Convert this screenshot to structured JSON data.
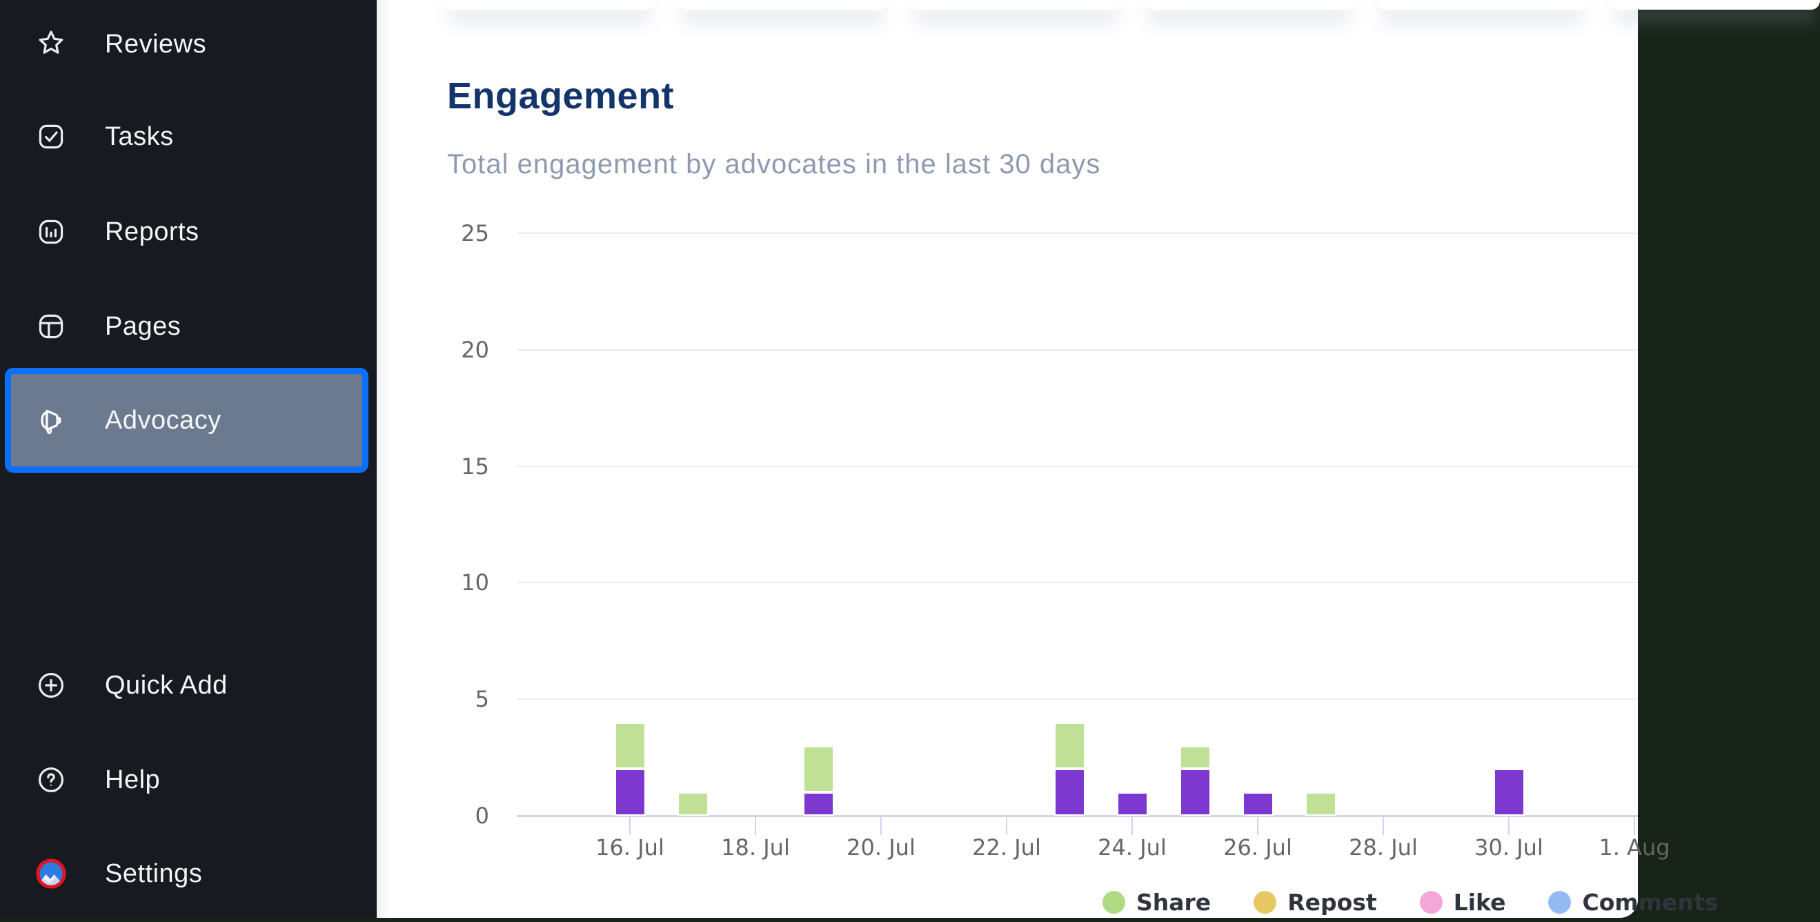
{
  "colors": {
    "backdrop": "#182418",
    "sidebar_bg": "#181a21",
    "sidebar_text": "#f4f5f7",
    "active_fill": "#6b7a8e",
    "active_border": "#0d6efa",
    "title": "#14356b",
    "subtitle": "#8e9ab0",
    "axis_label": "#666666",
    "grid_line": "#ececec",
    "axis_line": "#ccd6ec",
    "legend_text": "#30343c",
    "bar_share_green": "#c0e095",
    "bar_purple": "#7c38cf",
    "legend_share": "#aeda81",
    "legend_repost": "#e6c963",
    "legend_like": "#f3a7d8",
    "legend_comments": "#93bbf2",
    "avatar_ring": "#e8131d",
    "avatar_sky": "#2e7ce1",
    "avatar_mountain": "#c3d8f4"
  },
  "sidebar": {
    "items": [
      {
        "label": "Reviews",
        "icon": "star",
        "active": false
      },
      {
        "label": "Tasks",
        "icon": "checkbox",
        "active": false
      },
      {
        "label": "Reports",
        "icon": "bar-chart",
        "active": false
      },
      {
        "label": "Pages",
        "icon": "layout",
        "active": false
      },
      {
        "label": "Advocacy",
        "icon": "megaphone",
        "active": true
      }
    ],
    "footer_items": [
      {
        "label": "Quick Add",
        "icon": "plus-circle"
      },
      {
        "label": "Help",
        "icon": "question-circle"
      },
      {
        "label": "Settings",
        "icon": "avatar"
      }
    ]
  },
  "header": {
    "title": "Engagement",
    "subtitle": "Total engagement by advocates in the last 30 days"
  },
  "chart_data": {
    "type": "bar",
    "stacked": true,
    "title": "Engagement",
    "subtitle": "Total engagement by advocates in the last 30 days",
    "y_axis": {
      "min": 0,
      "max": 25,
      "ticks": [
        0,
        5,
        10,
        15,
        20,
        25
      ]
    },
    "x_ticks": [
      {
        "day": 16,
        "label": "16. Jul"
      },
      {
        "day": 18,
        "label": "18. Jul"
      },
      {
        "day": 20,
        "label": "20. Jul"
      },
      {
        "day": 22,
        "label": "22. Jul"
      },
      {
        "day": 24,
        "label": "24. Jul"
      },
      {
        "day": 26,
        "label": "26. Jul"
      },
      {
        "day": 28,
        "label": "28. Jul"
      },
      {
        "day": 30,
        "label": "30. Jul"
      },
      {
        "day": 32,
        "label": "1. Aug"
      }
    ],
    "series": [
      {
        "id": "purple",
        "name": "",
        "color_key": "bar_purple",
        "stack_order": 0
      },
      {
        "id": "share",
        "name": "Share",
        "color_key": "bar_share_green",
        "stack_order": 1
      }
    ],
    "bars": [
      {
        "day": 16,
        "label": "16. Jul",
        "purple": 2,
        "share": 2
      },
      {
        "day": 17,
        "label": "17. Jul",
        "purple": 0,
        "share": 1
      },
      {
        "day": 19,
        "label": "19. Jul",
        "purple": 1,
        "share": 2
      },
      {
        "day": 23,
        "label": "23. Jul",
        "purple": 2,
        "share": 2
      },
      {
        "day": 24,
        "label": "24. Jul",
        "purple": 1,
        "share": 0
      },
      {
        "day": 25,
        "label": "25. Jul",
        "purple": 2,
        "share": 1
      },
      {
        "day": 26,
        "label": "26. Jul",
        "purple": 1,
        "share": 0
      },
      {
        "day": 27,
        "label": "27. Jul",
        "purple": 0,
        "share": 1
      },
      {
        "day": 30,
        "label": "30. Jul",
        "purple": 2,
        "share": 0
      }
    ],
    "legend": [
      {
        "label": "Share",
        "color_key": "legend_share"
      },
      {
        "label": "Repost",
        "color_key": "legend_repost"
      },
      {
        "label": "Like",
        "color_key": "legend_like"
      },
      {
        "label": "Comments",
        "color_key": "legend_comments"
      }
    ],
    "legend_position": "bottom-right"
  }
}
